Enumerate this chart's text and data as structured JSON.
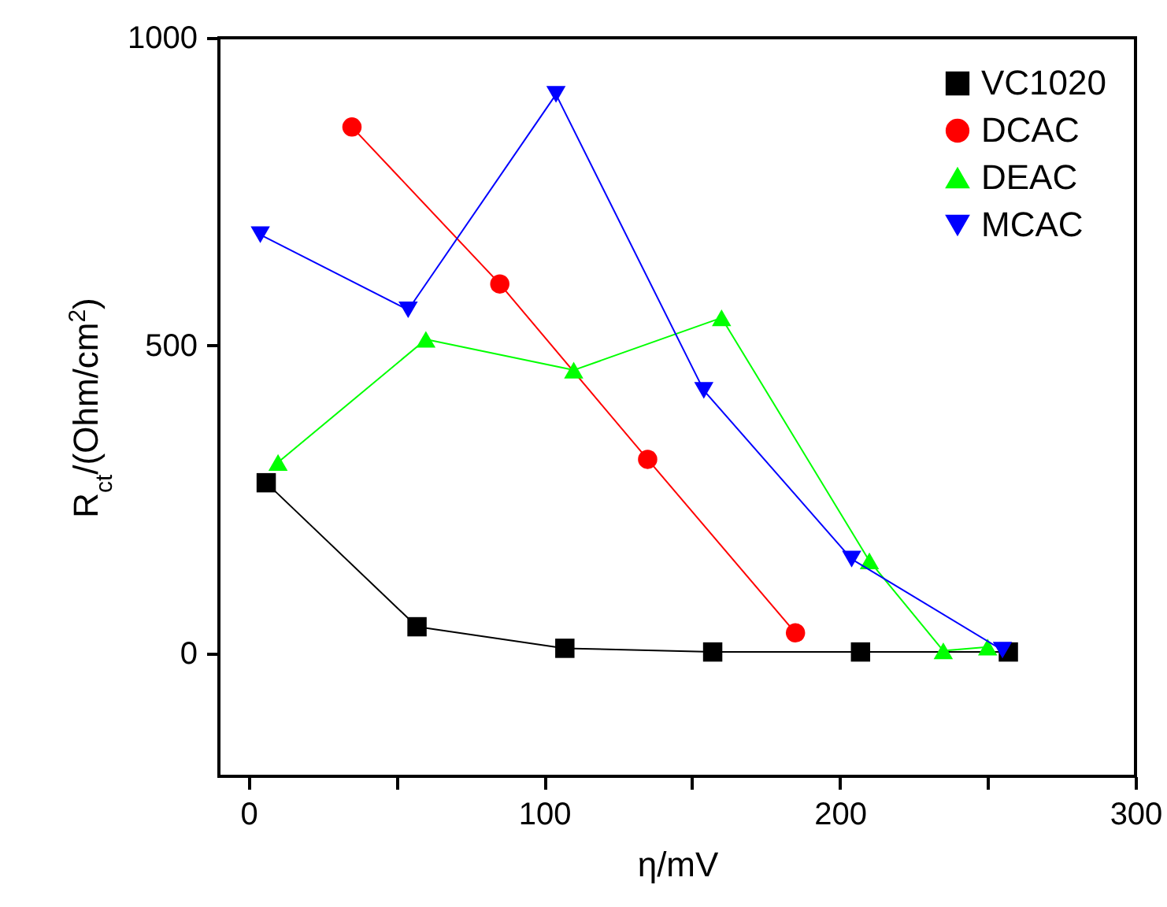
{
  "chart_data": {
    "type": "line",
    "xlabel": "η/mV",
    "ylabel": "R$_{ct}$/(Ohm/cm$^{2}$)",
    "xlim": [
      -10,
      300
    ],
    "xticks": [
      0,
      {
        "value": 50,
        "label": null
      },
      100,
      {
        "value": 150,
        "label": null
      },
      200,
      {
        "value": 250,
        "label": null
      },
      300
    ],
    "ylim": [
      -200,
      1000
    ],
    "yticks": [
      0,
      500,
      1000
    ],
    "grid": false,
    "legend": "top right",
    "series": [
      {
        "name": "VC1020",
        "color": "#000000",
        "marker": "square",
        "x": [
          6,
          57,
          107,
          157,
          207,
          257
        ],
        "values": [
          277,
          43,
          8,
          2,
          2,
          2
        ]
      },
      {
        "name": "DCAC",
        "color": "#ff0000",
        "marker": "circle",
        "x": [
          35,
          85,
          135,
          185
        ],
        "values": [
          855,
          600,
          315,
          33
        ]
      },
      {
        "name": "DEAC",
        "color": "#00ff00",
        "marker": "triangle",
        "x": [
          10,
          60,
          110,
          160,
          210,
          235,
          250
        ],
        "values": [
          310,
          510,
          460,
          545,
          150,
          4,
          10
        ]
      },
      {
        "name": "MCAC",
        "color": "#0000ff",
        "marker": "triangle-down",
        "x": [
          4,
          54,
          104,
          154,
          204,
          255
        ],
        "values": [
          680,
          558,
          908,
          427,
          153,
          5
        ]
      }
    ]
  }
}
